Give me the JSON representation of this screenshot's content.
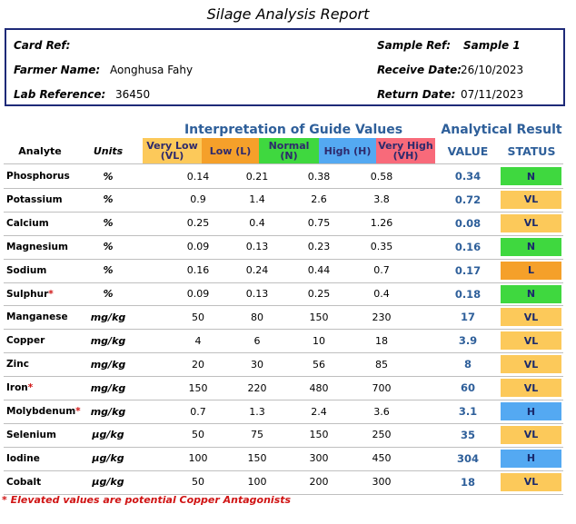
{
  "title": "Silage Analysis Report",
  "card": {
    "card_ref_label": "Card Ref:",
    "farmer_name_label": "Farmer Name:",
    "farmer_name": "Aonghusa Fahy",
    "lab_reference_label": "Lab Reference:",
    "lab_reference": "36450",
    "sample_ref_label": "Sample Ref:",
    "sample_ref": "Sample 1",
    "receive_date_label": "Receive Date:",
    "receive_date": "26/10/2023",
    "return_date_label": "Return Date:",
    "return_date": "07/11/2023"
  },
  "groups": {
    "interpretation": "Interpretation of Guide Values",
    "analytical": "Analytical Result"
  },
  "headers": {
    "analyte": "Analyte",
    "units": "Units",
    "very_low": "Very Low (VL)",
    "low": "Low (L)",
    "normal": "Normal (N)",
    "high": "High (H)",
    "very_high": "Very High (VH)",
    "value": "VALUE",
    "status": "STATUS"
  },
  "colors": {
    "very_low": "#fcc95a",
    "low": "#f5a02a",
    "normal": "#3fd83f",
    "high": "#54a9f2",
    "very_high": "#f86a7a",
    "accent_blue": "#2e5f9a",
    "card_border": "#1e2a78",
    "antagonist_red": "#d01414"
  },
  "rows": [
    {
      "analyte": "Phosphorus",
      "asterisk": "",
      "units": "%",
      "vl": "0.14",
      "l": "0.21",
      "n": "0.38",
      "h": "0.58",
      "value": "0.34",
      "status": "N"
    },
    {
      "analyte": "Potassium",
      "asterisk": "",
      "units": "%",
      "vl": "0.9",
      "l": "1.4",
      "n": "2.6",
      "h": "3.8",
      "value": "0.72",
      "status": "VL"
    },
    {
      "analyte": "Calcium",
      "asterisk": "",
      "units": "%",
      "vl": "0.25",
      "l": "0.4",
      "n": "0.75",
      "h": "1.26",
      "value": "0.08",
      "status": "VL"
    },
    {
      "analyte": "Magnesium",
      "asterisk": "",
      "units": "%",
      "vl": "0.09",
      "l": "0.13",
      "n": "0.23",
      "h": "0.35",
      "value": "0.16",
      "status": "N"
    },
    {
      "analyte": "Sodium",
      "asterisk": "",
      "units": "%",
      "vl": "0.16",
      "l": "0.24",
      "n": "0.44",
      "h": "0.7",
      "value": "0.17",
      "status": "L"
    },
    {
      "analyte": "Sulphur",
      "asterisk": "*",
      "units": "%",
      "vl": "0.09",
      "l": "0.13",
      "n": "0.25",
      "h": "0.4",
      "value": "0.18",
      "status": "N"
    },
    {
      "analyte": "Manganese",
      "asterisk": "",
      "units": "mg/kg",
      "vl": "50",
      "l": "80",
      "n": "150",
      "h": "230",
      "value": "17",
      "status": "VL"
    },
    {
      "analyte": "Copper",
      "asterisk": "",
      "units": "mg/kg",
      "vl": "4",
      "l": "6",
      "n": "10",
      "h": "18",
      "value": "3.9",
      "status": "VL"
    },
    {
      "analyte": "Zinc",
      "asterisk": "",
      "units": "mg/kg",
      "vl": "20",
      "l": "30",
      "n": "56",
      "h": "85",
      "value": "8",
      "status": "VL"
    },
    {
      "analyte": "Iron",
      "asterisk": "*",
      "units": "mg/kg",
      "vl": "150",
      "l": "220",
      "n": "480",
      "h": "700",
      "value": "60",
      "status": "VL"
    },
    {
      "analyte": "Molybdenum",
      "asterisk": "*",
      "units": "mg/kg",
      "vl": "0.7",
      "l": "1.3",
      "n": "2.4",
      "h": "3.6",
      "value": "3.1",
      "status": "H"
    },
    {
      "analyte": "Selenium",
      "asterisk": "",
      "units": "µg/kg",
      "vl": "50",
      "l": "75",
      "n": "150",
      "h": "250",
      "value": "35",
      "status": "VL"
    },
    {
      "analyte": "Iodine",
      "asterisk": "",
      "units": "µg/kg",
      "vl": "100",
      "l": "150",
      "n": "300",
      "h": "450",
      "value": "304",
      "status": "H"
    },
    {
      "analyte": "Cobalt",
      "asterisk": "",
      "units": "µg/kg",
      "vl": "50",
      "l": "100",
      "n": "200",
      "h": "300",
      "value": "18",
      "status": "VL"
    }
  ],
  "footnote": "* Elevated values are potential Copper Antagonists"
}
